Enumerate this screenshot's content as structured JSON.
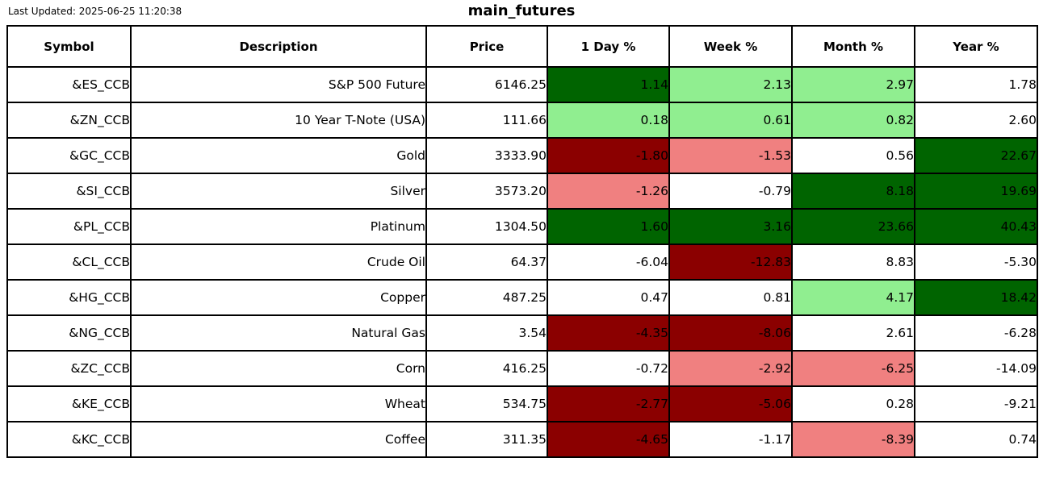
{
  "page": {
    "last_updated": "Last Updated: 2025-06-25 11:20:38",
    "title": "main_futures"
  },
  "colors": {
    "strong_gain": "#006400",
    "mild_gain": "#90EE90",
    "strong_loss": "#8B0000",
    "mild_loss": "#F08080",
    "neutral": "#FFFFFF",
    "border": "#000000",
    "text": "#000000"
  },
  "chart_data": {
    "type": "table",
    "title": "main_futures",
    "columns": [
      "Symbol",
      "Description",
      "Price",
      "1 Day %",
      "Week %",
      "Month %",
      "Year %"
    ],
    "rows": [
      {
        "symbol": "&ES_CCB",
        "description": "S&P 500 Future",
        "price": "6146.25",
        "changes": [
          [
            "1.14",
            "strong_gain"
          ],
          [
            "2.13",
            "mild_gain"
          ],
          [
            "2.97",
            "mild_gain"
          ],
          [
            "1.78",
            "neutral"
          ]
        ]
      },
      {
        "symbol": "&ZN_CCB",
        "description": "10 Year T-Note (USA)",
        "price": "111.66",
        "changes": [
          [
            "0.18",
            "mild_gain"
          ],
          [
            "0.61",
            "mild_gain"
          ],
          [
            "0.82",
            "mild_gain"
          ],
          [
            "2.60",
            "neutral"
          ]
        ]
      },
      {
        "symbol": "&GC_CCB",
        "description": "Gold",
        "price": "3333.90",
        "changes": [
          [
            "-1.80",
            "strong_loss"
          ],
          [
            "-1.53",
            "mild_loss"
          ],
          [
            "0.56",
            "neutral"
          ],
          [
            "22.67",
            "strong_gain"
          ]
        ]
      },
      {
        "symbol": "&SI_CCB",
        "description": "Silver",
        "price": "3573.20",
        "changes": [
          [
            "-1.26",
            "mild_loss"
          ],
          [
            "-0.79",
            "neutral"
          ],
          [
            "8.18",
            "strong_gain"
          ],
          [
            "19.69",
            "strong_gain"
          ]
        ]
      },
      {
        "symbol": "&PL_CCB",
        "description": "Platinum",
        "price": "1304.50",
        "changes": [
          [
            "1.60",
            "strong_gain"
          ],
          [
            "3.16",
            "strong_gain"
          ],
          [
            "23.66",
            "strong_gain"
          ],
          [
            "40.43",
            "strong_gain"
          ]
        ]
      },
      {
        "symbol": "&CL_CCB",
        "description": "Crude Oil",
        "price": "64.37",
        "changes": [
          [
            "-6.04",
            "neutral"
          ],
          [
            "-12.83",
            "strong_loss"
          ],
          [
            "8.83",
            "neutral"
          ],
          [
            "-5.30",
            "neutral"
          ]
        ]
      },
      {
        "symbol": "&HG_CCB",
        "description": "Copper",
        "price": "487.25",
        "changes": [
          [
            "0.47",
            "neutral"
          ],
          [
            "0.81",
            "neutral"
          ],
          [
            "4.17",
            "mild_gain"
          ],
          [
            "18.42",
            "strong_gain"
          ]
        ]
      },
      {
        "symbol": "&NG_CCB",
        "description": "Natural Gas",
        "price": "3.54",
        "changes": [
          [
            "-4.35",
            "strong_loss"
          ],
          [
            "-8.06",
            "strong_loss"
          ],
          [
            "2.61",
            "neutral"
          ],
          [
            "-6.28",
            "neutral"
          ]
        ]
      },
      {
        "symbol": "&ZC_CCB",
        "description": "Corn",
        "price": "416.25",
        "changes": [
          [
            "-0.72",
            "neutral"
          ],
          [
            "-2.92",
            "mild_loss"
          ],
          [
            "-6.25",
            "mild_loss"
          ],
          [
            "-14.09",
            "neutral"
          ]
        ]
      },
      {
        "symbol": "&KE_CCB",
        "description": "Wheat",
        "price": "534.75",
        "changes": [
          [
            "-2.77",
            "strong_loss"
          ],
          [
            "-5.06",
            "strong_loss"
          ],
          [
            "0.28",
            "neutral"
          ],
          [
            "-9.21",
            "neutral"
          ]
        ]
      },
      {
        "symbol": "&KC_CCB",
        "description": "Coffee",
        "price": "311.35",
        "changes": [
          [
            "-4.65",
            "strong_loss"
          ],
          [
            "-1.17",
            "neutral"
          ],
          [
            "-8.39",
            "mild_loss"
          ],
          [
            "0.74",
            "neutral"
          ]
        ]
      }
    ]
  }
}
